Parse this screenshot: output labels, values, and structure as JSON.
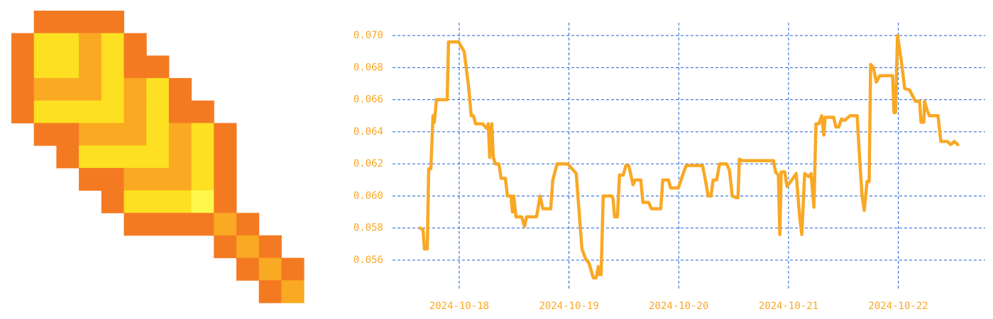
{
  "chart_data": {
    "type": "line",
    "x": [
      "2024-10-17T15:28",
      "2024-10-17T16:05",
      "2024-10-17T16:24",
      "2024-10-17T17:01",
      "2024-10-17T17:20",
      "2024-10-17T17:48",
      "2024-10-17T18:16",
      "2024-10-17T18:34",
      "2024-10-17T19:02",
      "2024-10-17T21:22",
      "2024-10-17T21:40",
      "2024-10-17T23:51",
      "2024-10-18T01:05",
      "2024-10-18T02:01",
      "2024-10-18T02:38",
      "2024-10-18T03:06",
      "2024-10-18T03:34",
      "2024-10-18T05:07",
      "2024-10-18T06:03",
      "2024-10-18T06:21",
      "2024-10-18T06:40",
      "2024-10-18T07:08",
      "2024-10-18T07:27",
      "2024-10-18T07:55",
      "2024-10-18T08:41",
      "2024-10-18T09:09",
      "2024-10-18T10:05",
      "2024-10-18T10:33",
      "2024-10-18T11:19",
      "2024-10-18T11:38",
      "2024-10-18T11:56",
      "2024-10-18T12:24",
      "2024-10-18T13:39",
      "2024-10-18T14:16",
      "2024-10-18T14:44",
      "2024-10-18T16:54",
      "2024-10-18T17:41",
      "2024-10-18T18:18",
      "2024-10-18T20:00",
      "2024-10-18T20:28",
      "2024-10-18T21:24",
      "2024-10-18T23:44",
      "2024-10-19T00:39",
      "2024-10-19T01:35",
      "2024-10-19T02:50",
      "2024-10-19T03:36",
      "2024-10-19T04:23",
      "2024-10-19T05:19",
      "2024-10-19T05:56",
      "2024-10-19T06:24",
      "2024-10-19T06:42",
      "2024-10-19T07:01",
      "2024-10-19T07:29",
      "2024-10-19T09:21",
      "2024-10-19T09:39",
      "2024-10-19T09:58",
      "2024-10-19T10:35",
      "2024-10-19T11:03",
      "2024-10-19T11:50",
      "2024-10-19T12:27",
      "2024-10-19T13:04",
      "2024-10-19T14:00",
      "2024-10-19T14:28",
      "2024-10-19T15:42",
      "2024-10-19T16:10",
      "2024-10-19T17:24",
      "2024-10-19T18:02",
      "2024-10-19T20:03",
      "2024-10-19T20:31",
      "2024-10-19T21:45",
      "2024-10-19T22:13",
      "2024-10-19T23:55",
      "2024-10-20T00:51",
      "2024-10-20T01:38",
      "2024-10-20T05:12",
      "2024-10-20T05:49",
      "2024-10-20T06:26",
      "2024-10-20T07:03",
      "2024-10-20T07:31",
      "2024-10-20T08:18",
      "2024-10-20T08:55",
      "2024-10-20T10:28",
      "2024-10-20T11:05",
      "2024-10-20T11:42",
      "2024-10-20T12:29",
      "2024-10-20T12:57",
      "2024-10-20T13:15",
      "2024-10-20T13:53",
      "2024-10-20T15:44",
      "2024-10-20T16:59",
      "2024-10-20T20:42",
      "2024-10-20T21:10",
      "2024-10-20T21:47",
      "2024-10-20T22:06",
      "2024-10-20T22:24",
      "2024-10-20T23:11",
      "2024-10-20T23:39",
      "2024-10-21T00:44",
      "2024-10-21T01:40",
      "2024-10-21T02:26",
      "2024-10-21T02:54",
      "2024-10-21T03:32",
      "2024-10-21T04:27",
      "2024-10-21T04:55",
      "2024-10-21T05:33",
      "2024-10-21T06:00",
      "2024-10-21T06:38",
      "2024-10-21T07:15",
      "2024-10-21T07:43",
      "2024-10-21T08:01",
      "2024-10-21T09:53",
      "2024-10-21T10:21",
      "2024-10-21T10:58",
      "2024-10-21T11:35",
      "2024-10-21T12:13",
      "2024-10-21T13:27",
      "2024-10-21T15:00",
      "2024-10-21T15:37",
      "2024-10-21T16:05",
      "2024-10-21T16:33",
      "2024-10-21T17:10",
      "2024-10-21T17:38",
      "2024-10-21T17:57",
      "2024-10-21T18:34",
      "2024-10-21T19:11",
      "2024-10-21T19:58",
      "2024-10-21T20:44",
      "2024-10-21T22:45",
      "2024-10-21T23:04",
      "2024-10-21T23:23",
      "2024-10-21T23:50",
      "2024-10-22T00:37",
      "2024-10-22T01:24",
      "2024-10-22T02:29",
      "2024-10-22T03:43",
      "2024-10-22T04:39",
      "2024-10-22T04:58",
      "2024-10-22T05:35",
      "2024-10-22T05:44",
      "2024-10-22T06:21",
      "2024-10-22T06:49",
      "2024-10-22T08:41",
      "2024-10-22T09:18",
      "2024-10-22T10:42",
      "2024-10-22T11:28",
      "2024-10-22T12:15",
      "2024-10-22T13:01"
    ],
    "values": [
      0.058,
      0.0579,
      0.0567,
      0.0567,
      0.0617,
      0.0617,
      0.065,
      0.0646,
      0.066,
      0.066,
      0.0696,
      0.0696,
      0.069,
      0.0669,
      0.065,
      0.065,
      0.0645,
      0.0645,
      0.0642,
      0.0645,
      0.0624,
      0.0645,
      0.0624,
      0.062,
      0.062,
      0.0611,
      0.0611,
      0.06,
      0.06,
      0.059,
      0.06,
      0.0587,
      0.0587,
      0.0581,
      0.0587,
      0.0587,
      0.06,
      0.0592,
      0.0592,
      0.061,
      0.062,
      0.062,
      0.0617,
      0.0614,
      0.0567,
      0.0561,
      0.0558,
      0.0549,
      0.0549,
      0.0556,
      0.0551,
      0.0551,
      0.06,
      0.06,
      0.0598,
      0.0587,
      0.0587,
      0.0613,
      0.0613,
      0.0619,
      0.0619,
      0.0607,
      0.061,
      0.061,
      0.0596,
      0.0596,
      0.0592,
      0.0592,
      0.061,
      0.061,
      0.0605,
      0.0605,
      0.0613,
      0.0619,
      0.0619,
      0.061,
      0.06,
      0.06,
      0.061,
      0.061,
      0.062,
      0.062,
      0.0616,
      0.06,
      0.0599,
      0.0599,
      0.0623,
      0.0622,
      0.0622,
      0.0622,
      0.0622,
      0.0615,
      0.0613,
      0.0576,
      0.0615,
      0.0615,
      0.0606,
      0.061,
      0.0614,
      0.0587,
      0.0576,
      0.0614,
      0.0612,
      0.0614,
      0.0593,
      0.0645,
      0.0645,
      0.065,
      0.0638,
      0.0649,
      0.0649,
      0.0643,
      0.0643,
      0.0648,
      0.0647,
      0.065,
      0.065,
      0.062,
      0.06,
      0.0591,
      0.0609,
      0.0609,
      0.0682,
      0.068,
      0.0671,
      0.0675,
      0.0675,
      0.0675,
      0.0652,
      0.0652,
      0.07,
      0.0685,
      0.0667,
      0.0666,
      0.0659,
      0.0659,
      0.0646,
      0.0646,
      0.0659,
      0.0653,
      0.065,
      0.065,
      0.0634,
      0.0634,
      0.0632,
      0.0634,
      0.0632
    ],
    "color": "#f9a825",
    "xlim": [
      "2024-10-17T09:25",
      "2024-10-22T19:00"
    ],
    "xticks": [
      "2024-10-18",
      "2024-10-19",
      "2024-10-20",
      "2024-10-21",
      "2024-10-22"
    ],
    "ylim": [
      0.0541,
      0.0708
    ],
    "yticks": [
      0.056,
      0.058,
      {
        "value": 0.06,
        "label": "0.060"
      },
      0.062,
      0.064,
      0.066,
      0.068,
      {
        "value": 0.07,
        "label": "0.070"
      }
    ],
    "grid": true,
    "grid_color": "#1a5fd6"
  }
}
